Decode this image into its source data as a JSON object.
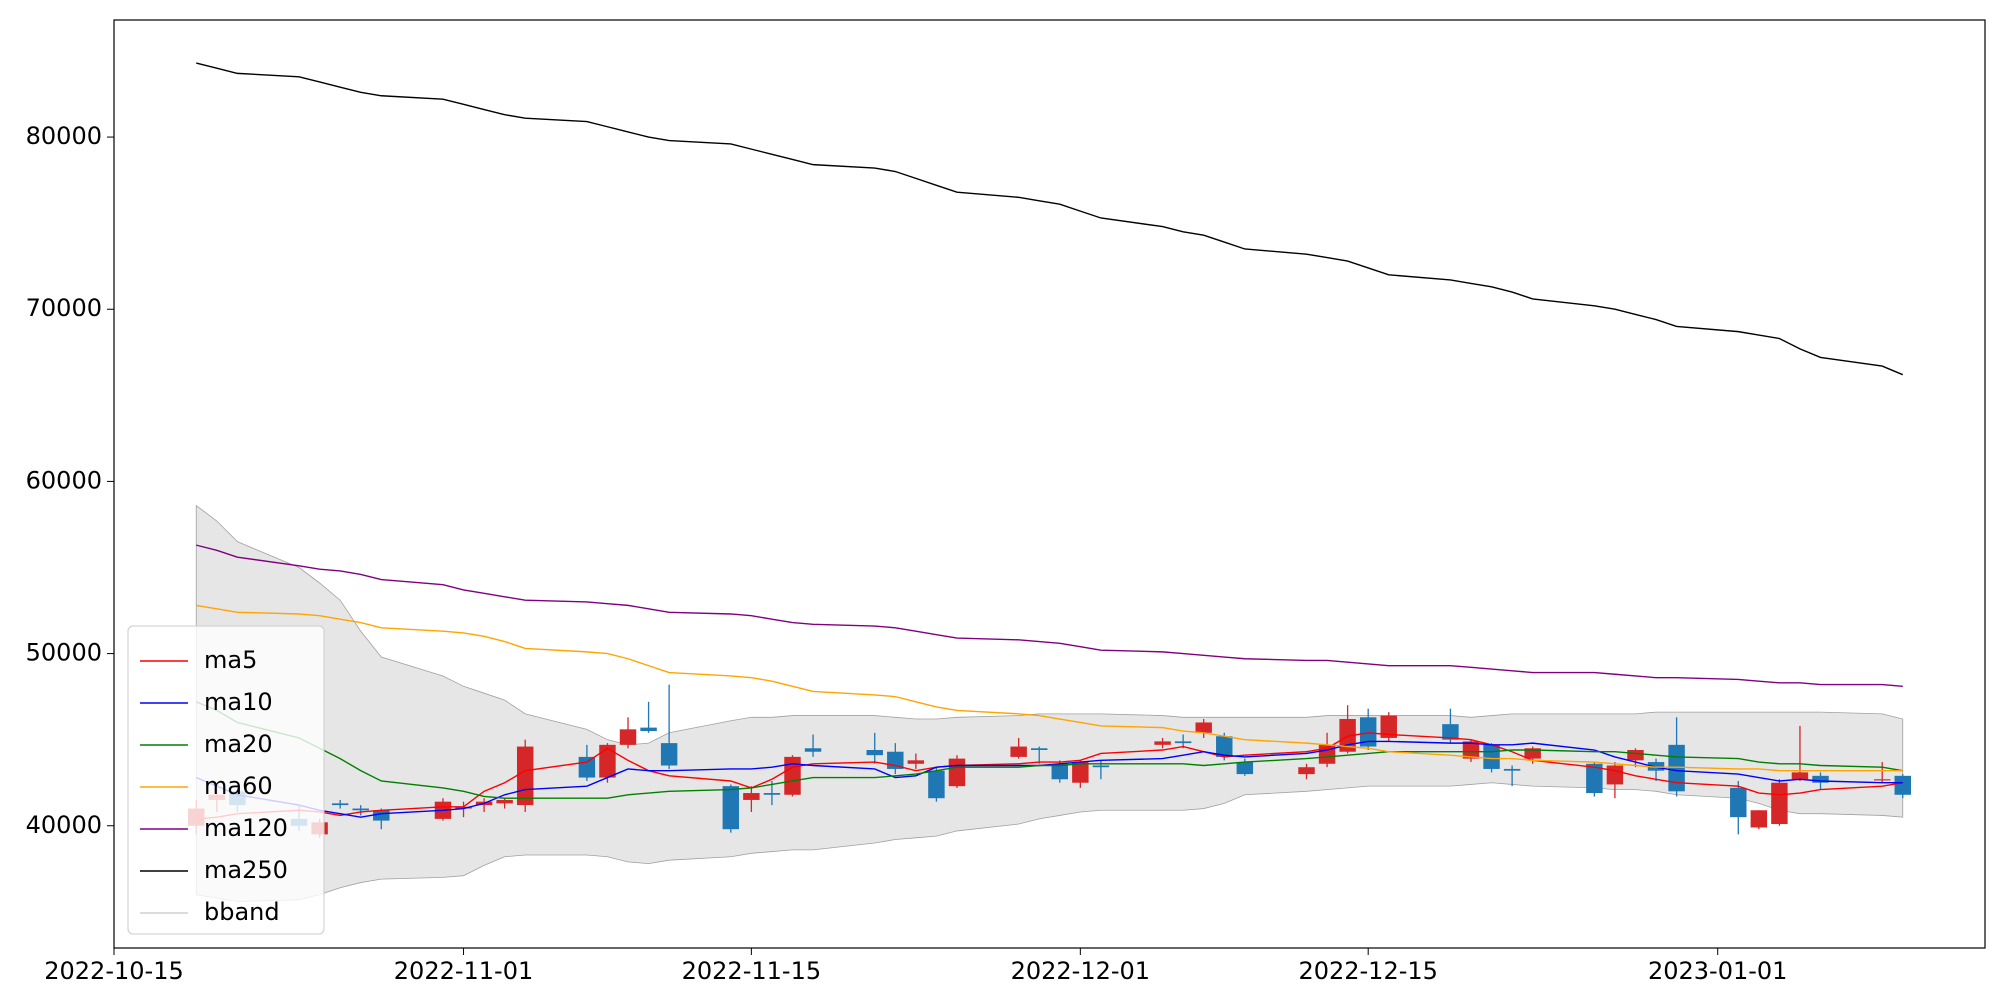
{
  "chart_data": {
    "type": "candlestick",
    "x": [
      "2022-10-19",
      "2022-10-20",
      "2022-10-21",
      "2022-10-24",
      "2022-10-25",
      "2022-10-26",
      "2022-10-27",
      "2022-10-28",
      "2022-10-31",
      "2022-11-01",
      "2022-11-02",
      "2022-11-03",
      "2022-11-04",
      "2022-11-07",
      "2022-11-08",
      "2022-11-09",
      "2022-11-10",
      "2022-11-11",
      "2022-11-14",
      "2022-11-15",
      "2022-11-16",
      "2022-11-17",
      "2022-11-18",
      "2022-11-21",
      "2022-11-22",
      "2022-11-23",
      "2022-11-24",
      "2022-11-25",
      "2022-11-28",
      "2022-11-29",
      "2022-11-30",
      "2022-12-01",
      "2022-12-02",
      "2022-12-05",
      "2022-12-06",
      "2022-12-07",
      "2022-12-08",
      "2022-12-09",
      "2022-12-12",
      "2022-12-13",
      "2022-12-14",
      "2022-12-15",
      "2022-12-16",
      "2022-12-19",
      "2022-12-20",
      "2022-12-21",
      "2022-12-22",
      "2022-12-23",
      "2022-12-26",
      "2022-12-27",
      "2022-12-28",
      "2022-12-29",
      "2022-12-30",
      "2023-01-02",
      "2023-01-03",
      "2023-01-04",
      "2023-01-05",
      "2023-01-06",
      "2023-01-09",
      "2023-01-10"
    ],
    "ohlc": {
      "up_color": "#d62728",
      "down_color": "#1f77b4",
      "open": [
        40000,
        41500,
        42000,
        40400,
        39500,
        41300,
        41000,
        40900,
        40400,
        41000,
        41200,
        41300,
        41200,
        44000,
        42800,
        44700,
        45700,
        44800,
        42300,
        41500,
        41900,
        41800,
        44500,
        44400,
        44300,
        43600,
        43200,
        42300,
        44000,
        44500,
        43600,
        42500,
        43500,
        44700,
        44900,
        45400,
        45200,
        43700,
        43000,
        43600,
        44300,
        46300,
        45100,
        45900,
        43900,
        44700,
        43300,
        43900,
        43600,
        42400,
        43800,
        43700,
        44700,
        42200,
        39900,
        40100,
        42700,
        42900,
        42700,
        42900
      ],
      "high": [
        41500,
        42500,
        42500,
        41200,
        40400,
        41500,
        41200,
        41000,
        41600,
        41400,
        41600,
        41600,
        45000,
        44700,
        44800,
        46300,
        47200,
        48200,
        42400,
        42300,
        42600,
        44100,
        45300,
        45400,
        44800,
        44200,
        43400,
        44100,
        45100,
        44600,
        43800,
        43800,
        43800,
        45100,
        45300,
        46200,
        45400,
        43900,
        43600,
        45400,
        47000,
        46800,
        46600,
        46800,
        45000,
        44800,
        43500,
        44600,
        43700,
        43700,
        44500,
        43900,
        46300,
        42600,
        40900,
        42700,
        45800,
        43100,
        43700,
        43000
      ],
      "low": [
        39500,
        40800,
        40800,
        39700,
        39300,
        41000,
        40600,
        39800,
        40300,
        40500,
        40800,
        41000,
        40800,
        42600,
        42500,
        44500,
        45400,
        43300,
        39600,
        40800,
        41200,
        41700,
        44000,
        43600,
        43000,
        43300,
        41400,
        42200,
        43900,
        43600,
        42500,
        42200,
        42700,
        44500,
        44500,
        45100,
        43800,
        42900,
        42700,
        43400,
        44200,
        44400,
        44900,
        44800,
        43700,
        43100,
        42300,
        43600,
        41700,
        41600,
        43400,
        42600,
        41700,
        39500,
        39800,
        40000,
        42600,
        42100,
        42500,
        41600
      ],
      "close": [
        41000,
        41800,
        41200,
        40000,
        40200,
        41200,
        40900,
        40300,
        41400,
        41100,
        41400,
        41500,
        44600,
        42800,
        44700,
        45600,
        45500,
        43500,
        39800,
        41900,
        41800,
        44000,
        44300,
        44100,
        43300,
        43800,
        41600,
        43900,
        44600,
        44400,
        42700,
        43700,
        43400,
        44900,
        44800,
        46000,
        44000,
        43000,
        43400,
        44700,
        46200,
        44600,
        46400,
        45000,
        44900,
        43300,
        43200,
        44500,
        41900,
        43500,
        44400,
        43200,
        42000,
        40500,
        40900,
        42500,
        43100,
        42500,
        42700,
        41800
      ]
    },
    "series": [
      {
        "name": "ma5",
        "color": "red",
        "values": [
          40400,
          40500,
          40700,
          40900,
          40800,
          40600,
          40800,
          40900,
          41100,
          41100,
          42000,
          42500,
          43200,
          43700,
          44500,
          43800,
          43200,
          42900,
          42600,
          42200,
          42700,
          43400,
          43600,
          43700,
          43500,
          43200,
          43400,
          43500,
          43600,
          43700,
          43700,
          43800,
          44200,
          44400,
          44600,
          44300,
          44000,
          44100,
          44300,
          44500,
          45200,
          45400,
          45300,
          45100,
          45000,
          44700,
          44300,
          43800,
          43400,
          43200,
          42900,
          42700,
          42500,
          42300,
          41900,
          41800,
          41900,
          42100,
          42300,
          42500
        ]
      },
      {
        "name": "ma10",
        "color": "blue",
        "values": [
          42800,
          42300,
          41800,
          41200,
          40900,
          40700,
          40500,
          40700,
          40900,
          41000,
          41300,
          41800,
          42100,
          42300,
          42800,
          43300,
          43200,
          43200,
          43300,
          43300,
          43400,
          43600,
          43500,
          43300,
          42800,
          42900,
          43400,
          43500,
          43500,
          43500,
          43600,
          43700,
          43800,
          43900,
          44100,
          44300,
          44100,
          44000,
          44200,
          44400,
          44700,
          44900,
          44900,
          44800,
          44800,
          44700,
          44700,
          44800,
          44400,
          44000,
          43700,
          43400,
          43200,
          43000,
          42800,
          42600,
          42700,
          42600,
          42500,
          42500
        ]
      },
      {
        "name": "ma20",
        "color": "green",
        "values": [
          47200,
          46700,
          46000,
          45100,
          44500,
          43900,
          43200,
          42600,
          42200,
          42000,
          41700,
          41600,
          41600,
          41600,
          41600,
          41800,
          41900,
          42000,
          42100,
          42200,
          42400,
          42600,
          42800,
          42800,
          42900,
          43000,
          43200,
          43400,
          43400,
          43500,
          43500,
          43600,
          43600,
          43600,
          43600,
          43500,
          43600,
          43700,
          43900,
          44000,
          44100,
          44200,
          44300,
          44300,
          44300,
          44300,
          44400,
          44400,
          44300,
          44300,
          44200,
          44100,
          44000,
          43900,
          43700,
          43600,
          43600,
          43500,
          43400,
          43200
        ]
      },
      {
        "name": "ma60",
        "color": "orange",
        "values": [
          52800,
          52600,
          52400,
          52300,
          52200,
          52000,
          51800,
          51500,
          51300,
          51200,
          51000,
          50700,
          50300,
          50100,
          50000,
          49700,
          49300,
          48900,
          48700,
          48600,
          48400,
          48100,
          47800,
          47600,
          47500,
          47200,
          46900,
          46700,
          46500,
          46400,
          46200,
          46000,
          45800,
          45700,
          45500,
          45400,
          45200,
          45000,
          44800,
          44700,
          44600,
          44500,
          44300,
          44100,
          44000,
          43900,
          43900,
          43800,
          43700,
          43600,
          43500,
          43400,
          43400,
          43300,
          43300,
          43200,
          43200,
          43200,
          43200,
          43200
        ]
      },
      {
        "name": "ma120",
        "color": "purple",
        "values": [
          56300,
          56000,
          55600,
          55100,
          54900,
          54800,
          54600,
          54300,
          54000,
          53700,
          53500,
          53300,
          53100,
          53000,
          52900,
          52800,
          52600,
          52400,
          52300,
          52200,
          52000,
          51800,
          51700,
          51600,
          51500,
          51300,
          51100,
          50900,
          50800,
          50700,
          50600,
          50400,
          50200,
          50100,
          50000,
          49900,
          49800,
          49700,
          49600,
          49600,
          49500,
          49400,
          49300,
          49300,
          49200,
          49100,
          49000,
          48900,
          48900,
          48800,
          48700,
          48600,
          48600,
          48500,
          48400,
          48300,
          48300,
          48200,
          48200,
          48100
        ]
      },
      {
        "name": "ma250",
        "color": "black",
        "values": [
          84300,
          84000,
          83700,
          83500,
          83200,
          82900,
          82600,
          82400,
          82200,
          81900,
          81600,
          81300,
          81100,
          80900,
          80600,
          80300,
          80000,
          79800,
          79600,
          79300,
          79000,
          78700,
          78400,
          78200,
          78000,
          77600,
          77200,
          76800,
          76500,
          76300,
          76100,
          75700,
          75300,
          74800,
          74500,
          74300,
          73900,
          73500,
          73200,
          73000,
          72800,
          72400,
          72000,
          71700,
          71500,
          71300,
          71000,
          70600,
          70200,
          70000,
          69700,
          69400,
          69000,
          68700,
          68500,
          68300,
          67700,
          67200,
          66700,
          66200
        ]
      }
    ],
    "bband": {
      "name": "bband",
      "color": "#a0a0a0",
      "fill": "#e6e6e6",
      "upper": [
        58600,
        57700,
        56500,
        55000,
        54100,
        53100,
        51300,
        49800,
        48700,
        48100,
        47700,
        47300,
        46500,
        45600,
        45000,
        44700,
        44800,
        45400,
        46100,
        46300,
        46300,
        46400,
        46400,
        46400,
        46300,
        46200,
        46200,
        46300,
        46400,
        46500,
        46500,
        46500,
        46500,
        46400,
        46300,
        46300,
        46300,
        46300,
        46300,
        46400,
        46400,
        46400,
        46400,
        46400,
        46300,
        46400,
        46500,
        46500,
        46500,
        46500,
        46500,
        46600,
        46600,
        46600,
        46600,
        46600,
        46600,
        46600,
        46500,
        46200
      ],
      "lower": [
        36000,
        35800,
        35600,
        35700,
        36000,
        36400,
        36700,
        36900,
        37000,
        37100,
        37700,
        38200,
        38300,
        38300,
        38200,
        37900,
        37800,
        38000,
        38200,
        38400,
        38500,
        38600,
        38600,
        39000,
        39200,
        39300,
        39400,
        39700,
        40100,
        40400,
        40600,
        40800,
        40900,
        40900,
        40900,
        41000,
        41300,
        41800,
        42000,
        42100,
        42200,
        42300,
        42300,
        42300,
        42400,
        42500,
        42400,
        42300,
        42200,
        42100,
        42100,
        42000,
        41800,
        41600,
        41300,
        40900,
        40700,
        40700,
        40600,
        40500
      ]
    },
    "xlim": [
      "2022-10-15",
      "2023-01-14"
    ],
    "xticks": [
      "2022-10-15",
      "2022-11-01",
      "2022-11-15",
      "2022-12-01",
      "2022-12-15",
      "2023-01-01"
    ],
    "ylim": [
      32900,
      86800
    ],
    "yticks": [
      40000,
      50000,
      60000,
      70000,
      80000
    ],
    "legend": "lower left"
  }
}
